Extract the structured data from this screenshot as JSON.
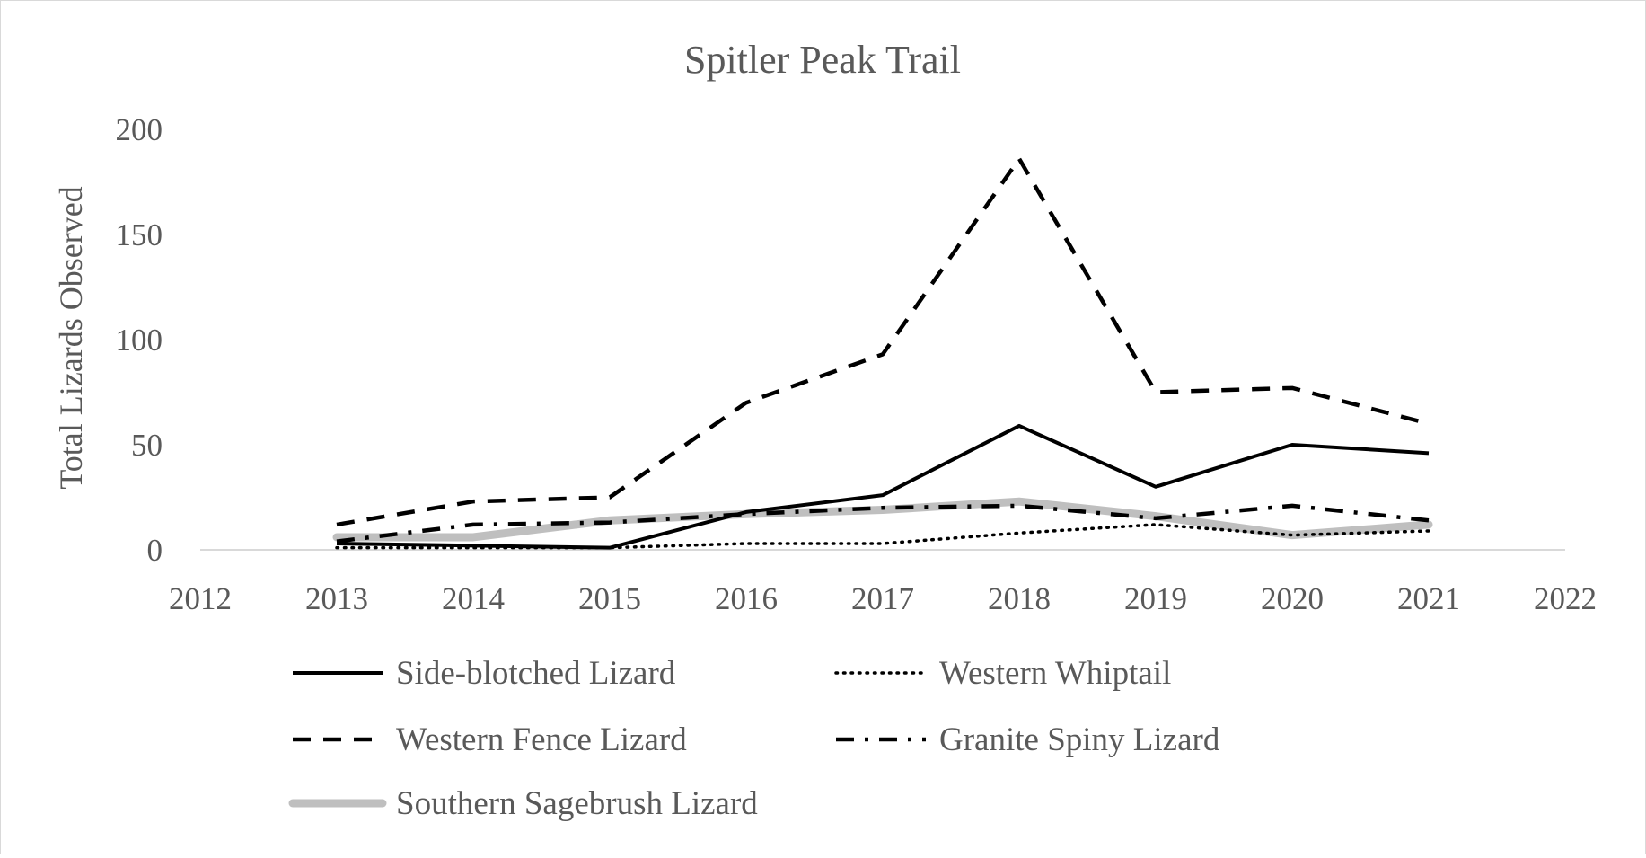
{
  "chart_data": {
    "type": "line",
    "title": "Spitler Peak Trail",
    "xlabel": "",
    "ylabel": "Total Lizards Observed",
    "xlim": [
      2012,
      2022
    ],
    "ylim": [
      0,
      200
    ],
    "x_ticks": [
      2012,
      2013,
      2014,
      2015,
      2016,
      2017,
      2018,
      2019,
      2020,
      2021,
      2022
    ],
    "y_ticks": [
      0,
      50,
      100,
      150,
      200
    ],
    "grid": false,
    "legend_position": "bottom",
    "x": [
      2013,
      2014,
      2015,
      2016,
      2017,
      2018,
      2019,
      2020,
      2021
    ],
    "series": [
      {
        "name": "Side-blotched Lizard",
        "style": "solid",
        "color": "#000000",
        "values": [
          3,
          2,
          1,
          18,
          26,
          59,
          30,
          50,
          46
        ]
      },
      {
        "name": "Western Whiptail",
        "style": "dotted",
        "color": "#000000",
        "values": [
          1,
          1,
          1,
          3,
          3,
          8,
          12,
          7,
          9
        ]
      },
      {
        "name": "Western Fence Lizard",
        "style": "dashed",
        "color": "#000000",
        "values": [
          12,
          23,
          25,
          70,
          93,
          186,
          75,
          77,
          60
        ]
      },
      {
        "name": "Granite Spiny Lizard",
        "style": "dashdot",
        "color": "#000000",
        "values": [
          4,
          12,
          13,
          17,
          20,
          21,
          15,
          21,
          14
        ]
      },
      {
        "name": "Southern Sagebrush Lizard",
        "style": "thick",
        "color": "#bfbfbf",
        "values": [
          6,
          6,
          14,
          17,
          19,
          23,
          16,
          7,
          12
        ]
      }
    ]
  }
}
